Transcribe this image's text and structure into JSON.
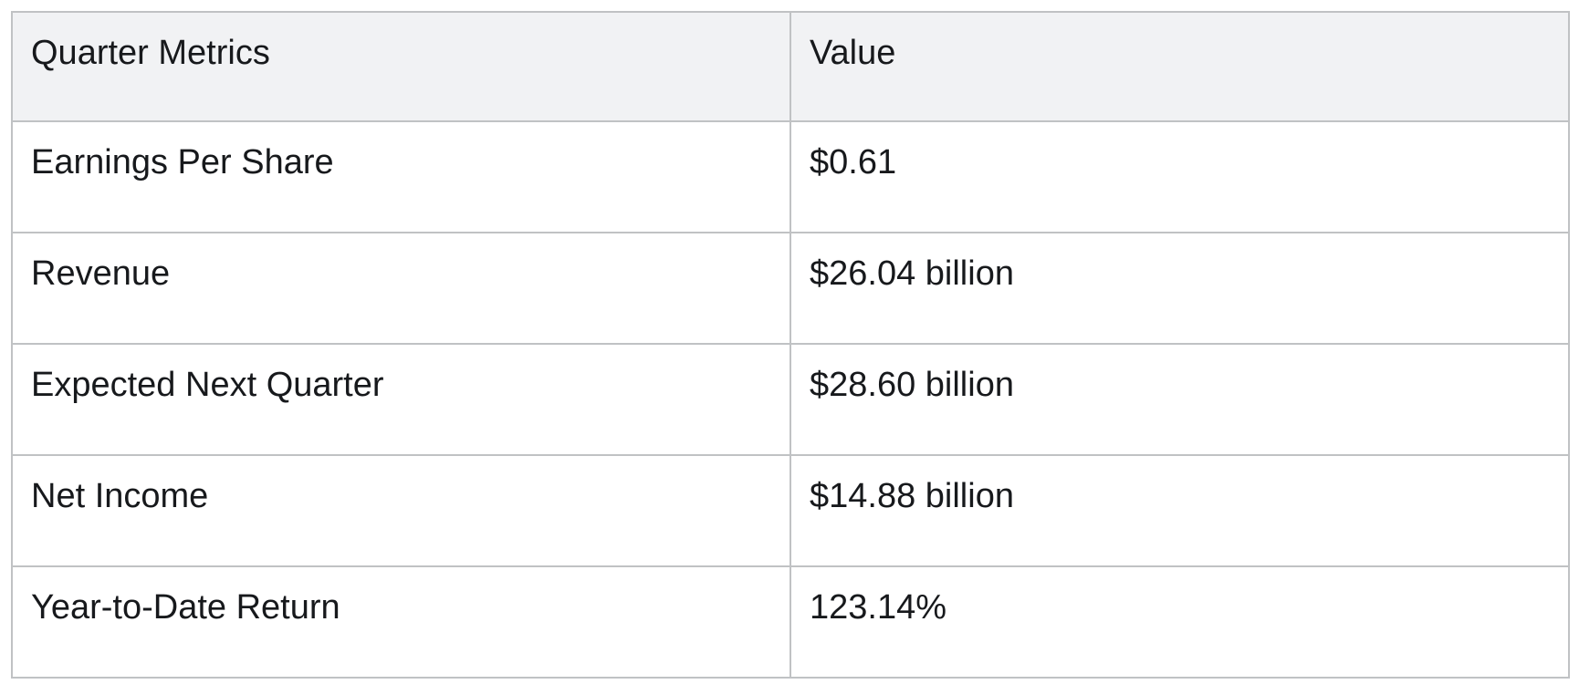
{
  "colors": {
    "page-bg": "#ffffff",
    "header-bg": "#f1f2f4",
    "border": "#c0c2c4",
    "text": "#17191c"
  },
  "table": {
    "columns": {
      "metric": "Quarter Metrics",
      "value": "Value"
    },
    "rows": [
      {
        "metric": "Earnings Per Share",
        "value": "$0.61"
      },
      {
        "metric": "Revenue",
        "value": "$26.04 billion"
      },
      {
        "metric": "Expected Next Quarter",
        "value": "$28.60 billion"
      },
      {
        "metric": "Net Income",
        "value": "$14.88 billion"
      },
      {
        "metric": "Year-to-Date Return",
        "value": "123.14%"
      }
    ]
  }
}
